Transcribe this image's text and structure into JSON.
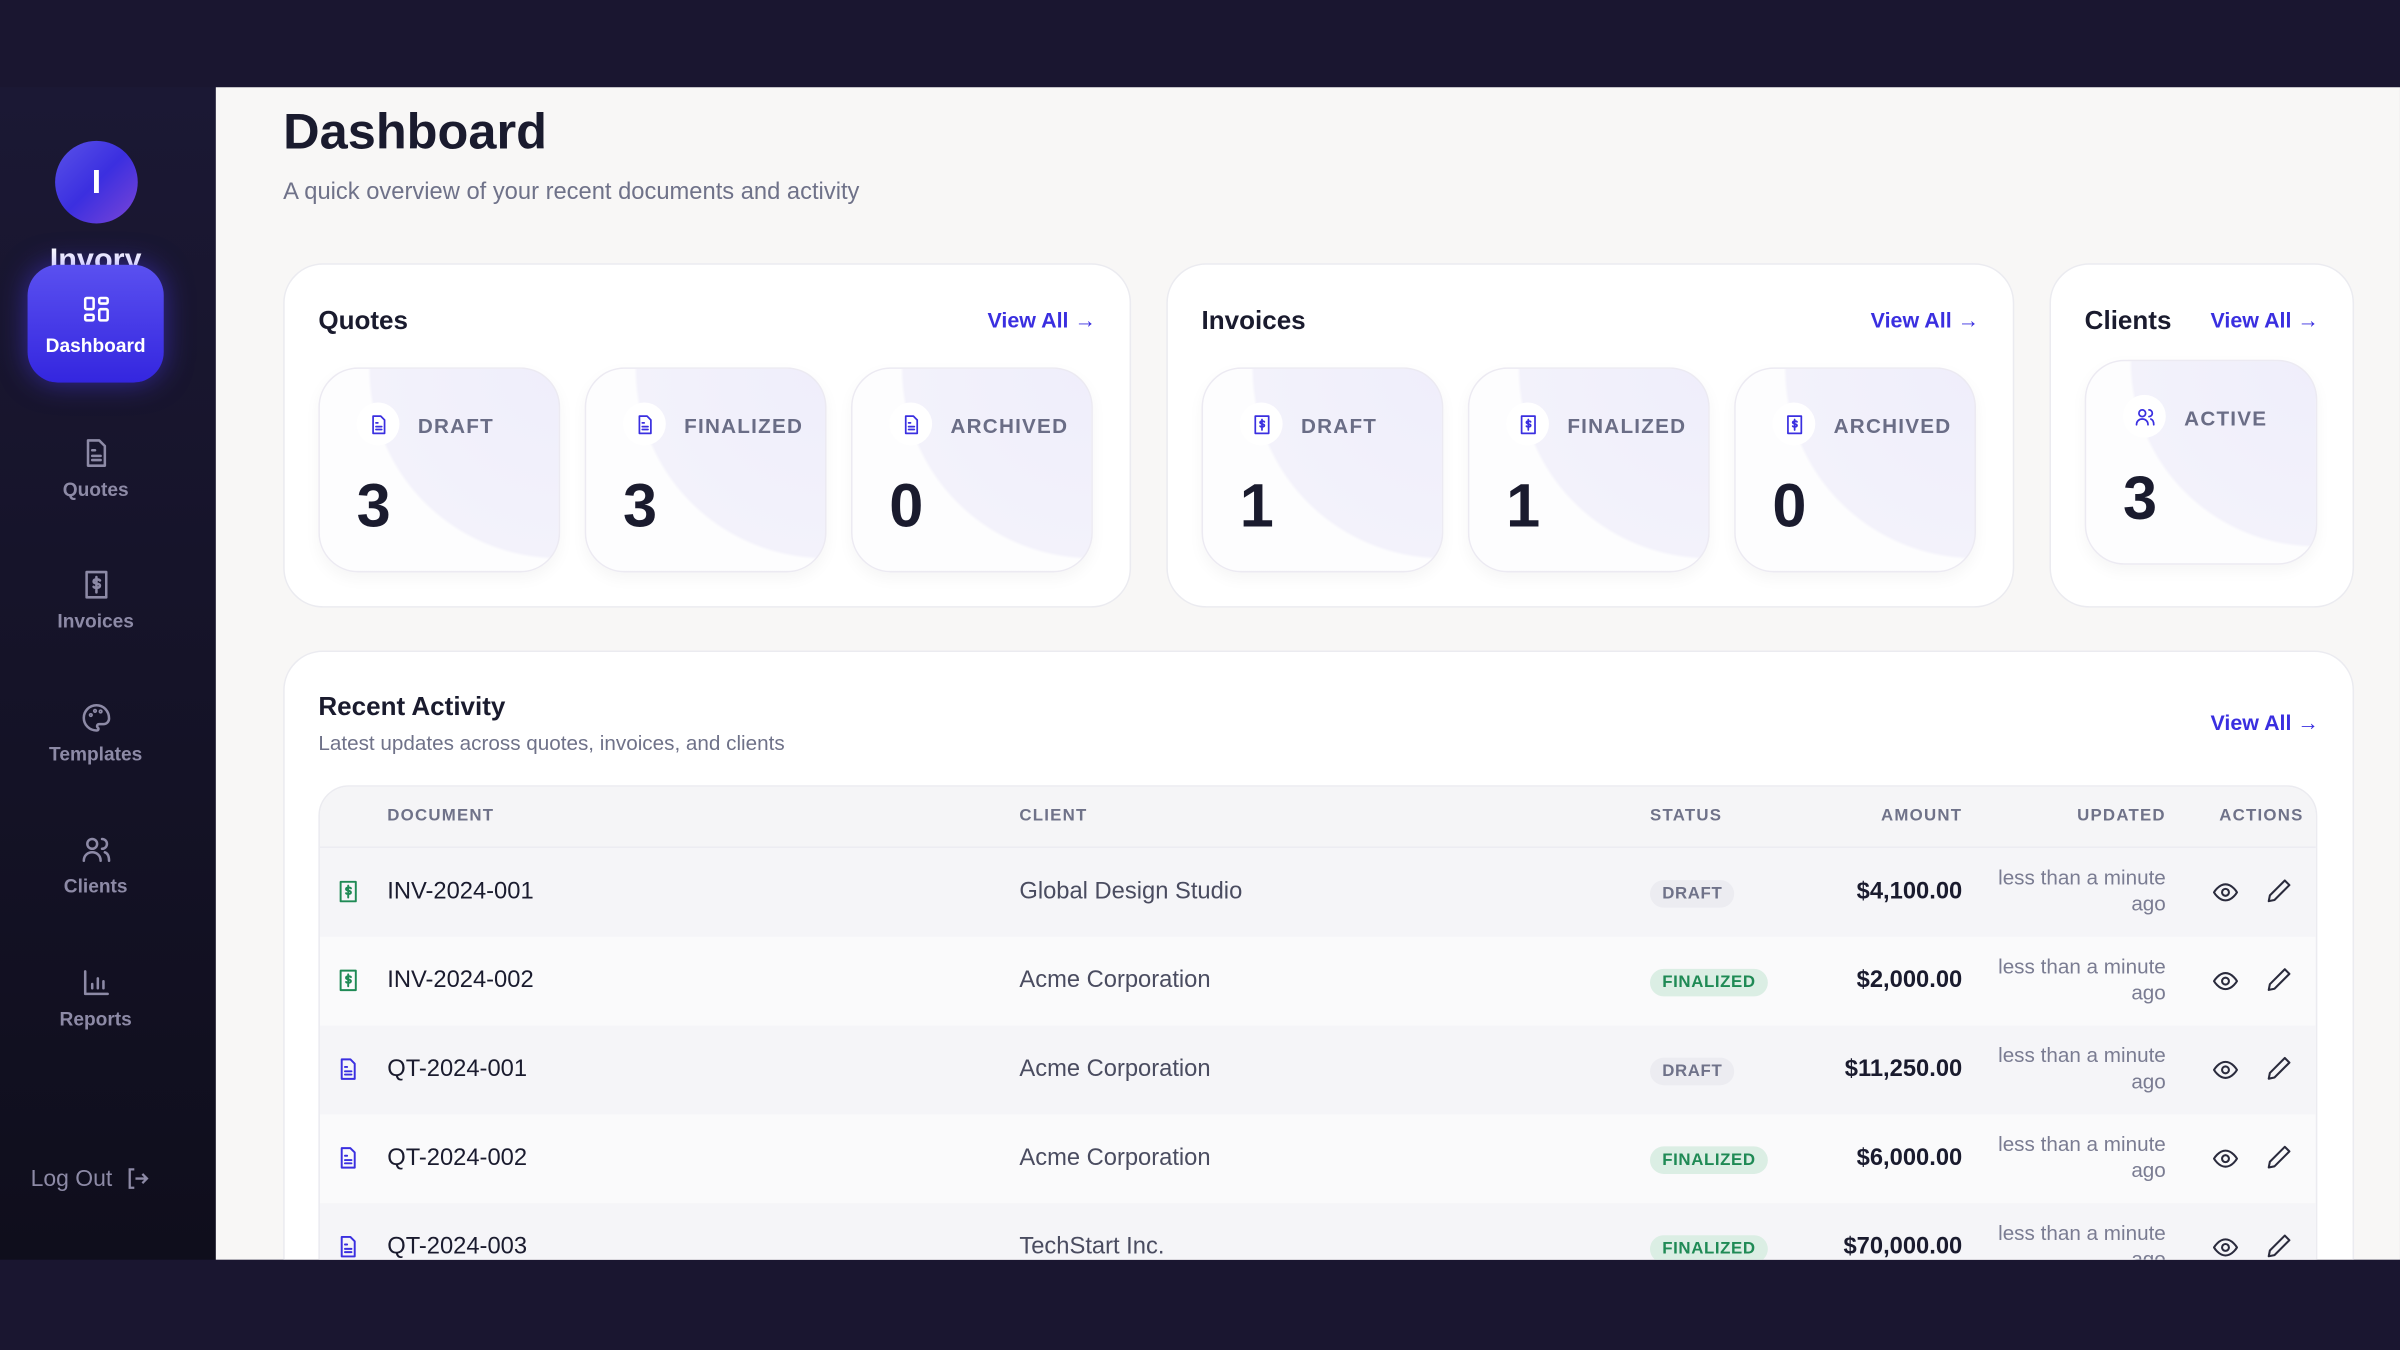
{
  "app": {
    "logo_letter": "I",
    "name": "Invory"
  },
  "sidebar": {
    "items": [
      {
        "label": "Dashboard",
        "icon": "dashboard-icon",
        "active": true
      },
      {
        "label": "Quotes",
        "icon": "file-icon"
      },
      {
        "label": "Invoices",
        "icon": "receipt-icon"
      },
      {
        "label": "Templates",
        "icon": "palette-icon"
      },
      {
        "label": "Clients",
        "icon": "users-icon"
      },
      {
        "label": "Reports",
        "icon": "bar-chart-icon"
      }
    ],
    "logout": "Log Out"
  },
  "header": {
    "title": "Dashboard",
    "subtitle": "A quick overview of your recent documents and activity"
  },
  "quotes": {
    "title": "Quotes",
    "view_all": "View All →",
    "stats": [
      {
        "label": "DRAFT",
        "value": "3"
      },
      {
        "label": "FINALIZED",
        "value": "3"
      },
      {
        "label": "ARCHIVED",
        "value": "0"
      }
    ]
  },
  "invoices": {
    "title": "Invoices",
    "view_all": "View All →",
    "stats": [
      {
        "label": "DRAFT",
        "value": "1"
      },
      {
        "label": "FINALIZED",
        "value": "1"
      },
      {
        "label": "ARCHIVED",
        "value": "0"
      }
    ]
  },
  "clients": {
    "title": "Clients",
    "view_all": "View All →",
    "stats": [
      {
        "label": "ACTIVE",
        "value": "3"
      }
    ]
  },
  "activity": {
    "title": "Recent Activity",
    "subtitle": "Latest updates across quotes, invoices, and clients",
    "view_all": "View All →",
    "columns": [
      "DOCUMENT",
      "CLIENT",
      "STATUS",
      "AMOUNT",
      "UPDATED",
      "ACTIONS"
    ],
    "rows": [
      {
        "type": "invoice",
        "document": "INV-2024-001",
        "client": "Global Design Studio",
        "status": "DRAFT",
        "amount": "$4,100.00",
        "updated": "less than a minute ago"
      },
      {
        "type": "invoice",
        "document": "INV-2024-002",
        "client": "Acme Corporation",
        "status": "FINALIZED",
        "amount": "$2,000.00",
        "updated": "less than a minute ago"
      },
      {
        "type": "quote",
        "document": "QT-2024-001",
        "client": "Acme Corporation",
        "status": "DRAFT",
        "amount": "$11,250.00",
        "updated": "less than a minute ago"
      },
      {
        "type": "quote",
        "document": "QT-2024-002",
        "client": "Acme Corporation",
        "status": "FINALIZED",
        "amount": "$6,000.00",
        "updated": "less than a minute ago"
      },
      {
        "type": "quote",
        "document": "QT-2024-003",
        "client": "TechStart Inc.",
        "status": "FINALIZED",
        "amount": "$70,000.00",
        "updated": "less than a minute ago"
      }
    ]
  },
  "colors": {
    "accent": "#3a2fe0",
    "invoice_icon": "#1f8a55",
    "sidebar_bg": "#15132a"
  }
}
